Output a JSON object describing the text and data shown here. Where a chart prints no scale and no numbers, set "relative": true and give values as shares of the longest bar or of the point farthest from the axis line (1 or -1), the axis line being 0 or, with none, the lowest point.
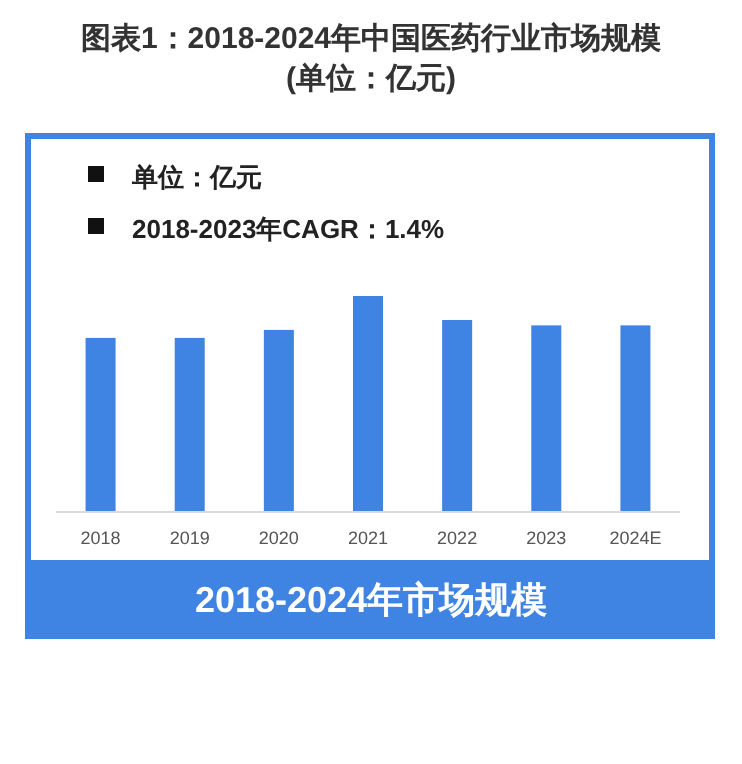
{
  "chart_data": {
    "type": "bar",
    "title": "图表1：2018-2024年中国医药行业市场规模",
    "subtitle": "(单位：亿元)",
    "categories": [
      "2018",
      "2019",
      "2020",
      "2021",
      "2022",
      "2023",
      "2024E"
    ],
    "values": [
      0.806,
      0.806,
      0.843,
      1,
      0.889,
      0.864,
      0.864
    ],
    "relative": true,
    "color": "#3f83e3",
    "annotations": [
      "单位：亿元",
      "2018-2023年CAGR：1.4%",
      "2018-2024年市场规模"
    ]
  }
}
